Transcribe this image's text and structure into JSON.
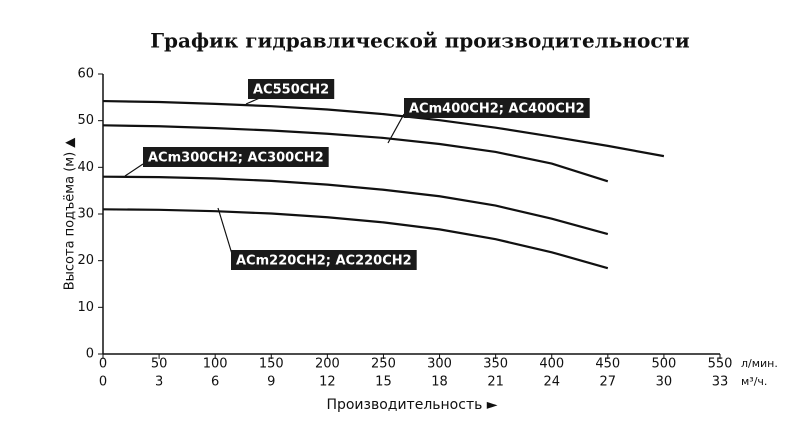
{
  "chart_data": {
    "type": "line",
    "title": "График гидравлической производительности",
    "y_label": "Высота подъёма (м) ▲",
    "x_label": "Производительность ►",
    "x_unit": "л/мин.",
    "x2_unit": "м³/ч.",
    "xlim": [
      0,
      550
    ],
    "xticks": [
      0,
      50,
      100,
      150,
      200,
      250,
      300,
      350,
      400,
      450,
      500,
      550
    ],
    "x2lim": [
      0,
      33
    ],
    "x2ticks": [
      0,
      3,
      6,
      9,
      12,
      15,
      18,
      21,
      24,
      27,
      30,
      33
    ],
    "ylim": [
      0,
      60
    ],
    "yticks": [
      0,
      10,
      20,
      30,
      40,
      50,
      60
    ],
    "grid": false,
    "series": [
      {
        "name": "AC550CH2",
        "color": "#111111",
        "x": [
          0,
          50,
          100,
          150,
          200,
          250,
          300,
          350,
          400,
          450,
          500
        ],
        "values": [
          54.2,
          54,
          53.6,
          53.1,
          52.4,
          51.4,
          50.1,
          48.5,
          46.6,
          44.6,
          42.4
        ]
      },
      {
        "name": "ACm400CH2; AC400CH2",
        "color": "#111111",
        "x": [
          0,
          50,
          100,
          150,
          200,
          250,
          300,
          350,
          400,
          450
        ],
        "values": [
          49,
          48.8,
          48.4,
          47.9,
          47.2,
          46.3,
          45,
          43.3,
          40.8,
          37
        ]
      },
      {
        "name": "ACm300CH2; AC300CH2",
        "color": "#111111",
        "x": [
          0,
          50,
          100,
          150,
          200,
          250,
          300,
          350,
          400,
          450
        ],
        "values": [
          38,
          37.9,
          37.6,
          37.1,
          36.3,
          35.2,
          33.8,
          31.8,
          29,
          25.7
        ]
      },
      {
        "name": "ACm220CH2; AC220CH2",
        "color": "#111111",
        "x": [
          0,
          50,
          100,
          150,
          200,
          250,
          300,
          350,
          400,
          450
        ],
        "values": [
          31,
          30.9,
          30.6,
          30.1,
          29.3,
          28.2,
          26.7,
          24.6,
          21.8,
          18.4
        ]
      }
    ]
  }
}
